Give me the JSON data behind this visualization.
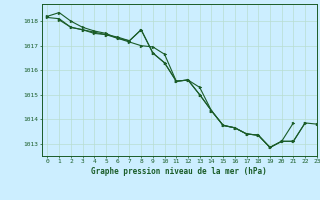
{
  "title": "Graphe pression niveau de la mer (hPa)",
  "background_color": "#cceeff",
  "plot_bg_color": "#cceeff",
  "grid_color": "#b8ddd0",
  "line_color": "#1a5c28",
  "marker_color": "#1a5c28",
  "xlim": [
    -0.5,
    23
  ],
  "ylim": [
    1012.5,
    1018.7
  ],
  "yticks": [
    1013,
    1014,
    1015,
    1016,
    1017,
    1018
  ],
  "xticks": [
    0,
    1,
    2,
    3,
    4,
    5,
    6,
    7,
    8,
    9,
    10,
    11,
    12,
    13,
    14,
    15,
    16,
    17,
    18,
    19,
    20,
    21,
    22,
    23
  ],
  "series": [
    [
      1018.2,
      1018.35,
      1018.0,
      1017.75,
      1017.6,
      1017.5,
      1017.3,
      1017.15,
      1017.0,
      1016.95,
      1016.65,
      1015.55,
      1015.6,
      1015.3,
      1014.35,
      1013.75,
      1013.65,
      1013.4,
      1013.35,
      1012.85,
      1013.1,
      1013.85,
      null,
      null
    ],
    [
      1018.15,
      1018.1,
      1017.75,
      1017.65,
      1017.55,
      1017.45,
      1017.35,
      1017.2,
      1017.65,
      1016.7,
      1016.3,
      1015.55,
      1015.6,
      1015.0,
      1014.35,
      1013.75,
      1013.65,
      1013.4,
      1013.35,
      1012.85,
      1013.1,
      1013.1,
      1013.85,
      null
    ],
    [
      null,
      1018.05,
      1017.75,
      1017.65,
      1017.5,
      1017.45,
      1017.3,
      1017.2,
      1017.65,
      1016.7,
      1016.3,
      1015.55,
      1015.6,
      1015.0,
      1014.35,
      1013.75,
      1013.65,
      1013.4,
      1013.35,
      1012.85,
      1013.1,
      1013.1,
      1013.85,
      1013.8
    ]
  ]
}
